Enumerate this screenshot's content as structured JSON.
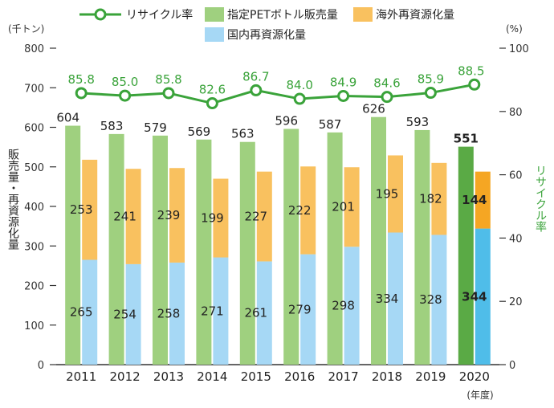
{
  "chart_data": {
    "type": "bar",
    "categories": [
      "2011",
      "2012",
      "2013",
      "2014",
      "2015",
      "2016",
      "2017",
      "2018",
      "2019",
      "2020"
    ],
    "x_unit": "(年度)",
    "left_axis": {
      "unit": "(千トン)",
      "label": "販売量・再資源化量",
      "ylim": [
        0,
        800
      ],
      "ticks": [
        0,
        100,
        200,
        300,
        400,
        500,
        600,
        700,
        800
      ]
    },
    "right_axis": {
      "unit": "(%)",
      "label": "リサイクル率",
      "ylim": [
        0,
        100
      ],
      "ticks": [
        0,
        20,
        40,
        60,
        80,
        100
      ]
    },
    "series": [
      {
        "name": "指定PETボトル販売量",
        "type": "bar",
        "values": [
          604,
          583,
          579,
          569,
          563,
          596,
          587,
          626,
          593,
          551
        ],
        "color": "#9fd07f",
        "highlight_color": "#5aaa45"
      },
      {
        "name": "国内再資源化量",
        "type": "stacked-bar",
        "values": [
          265,
          254,
          258,
          271,
          261,
          279,
          298,
          334,
          328,
          344
        ],
        "color": "#a6d8f5",
        "highlight_color": "#4fbde9"
      },
      {
        "name": "海外再資源化量",
        "type": "stacked-bar",
        "values": [
          253,
          241,
          239,
          199,
          227,
          222,
          201,
          195,
          182,
          144
        ],
        "color": "#f9c15f",
        "highlight_color": "#f5a623"
      },
      {
        "name": "リサイクル率",
        "type": "line",
        "axis": "right",
        "values": [
          85.8,
          85.0,
          85.8,
          82.6,
          86.7,
          84.0,
          84.9,
          84.6,
          85.9,
          88.5
        ],
        "labels": [
          "85.8",
          "85.0",
          "85.8",
          "82.6",
          "86.7",
          "84.0",
          "84.9",
          "84.6",
          "85.9",
          "88.5"
        ],
        "color": "#3aa33a"
      }
    ],
    "highlight_category": "2020",
    "legend_position": "top",
    "grid": false
  }
}
